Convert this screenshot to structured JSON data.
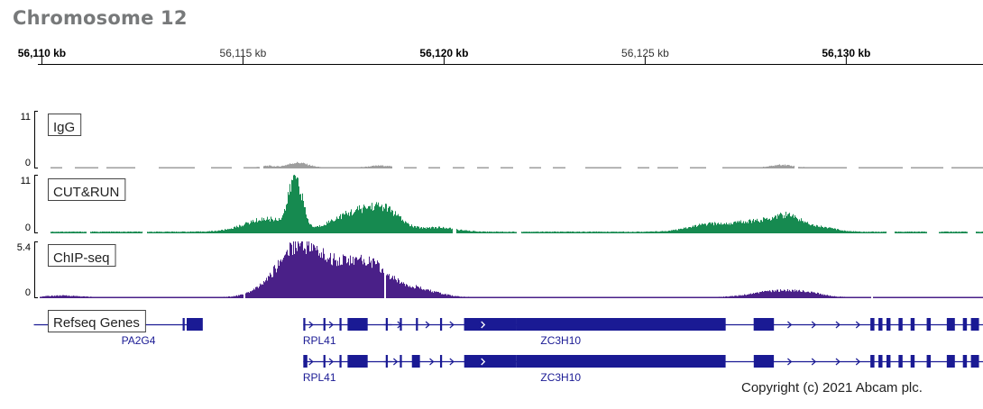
{
  "page": {
    "title": "Chromosome 12",
    "copyright": "Copyright (c) 2021 Abcam plc."
  },
  "colors": {
    "igg": "#9e9e9e",
    "cut_run": "#168a50",
    "chip_seq": "#4a2088",
    "genes": "#1a1a94",
    "axis": "#000000",
    "title": "#77797a"
  },
  "chart_data": {
    "type": "area",
    "title": "Chromosome 12",
    "xlabel": "",
    "x_unit": "kb",
    "x_range": [
      56109.9,
      56133.4
    ],
    "ruler_ticks": [
      {
        "value": 56110,
        "label": "56,110 kb",
        "bold": true
      },
      {
        "value": 56115,
        "label": "56,115 kb",
        "bold": false
      },
      {
        "value": 56120,
        "label": "56,120 kb",
        "bold": true
      },
      {
        "value": 56125,
        "label": "56,125 kb",
        "bold": false
      },
      {
        "value": 56130,
        "label": "56,130 kb",
        "bold": true
      }
    ],
    "tracks": [
      {
        "name": "IgG",
        "color_key": "igg",
        "ylim": [
          0,
          11
        ],
        "ymax_label": "11",
        "ymin_label": "0",
        "gaps": [
          [
            56109.9,
            56110.2
          ],
          [
            56110.5,
            56110.8
          ],
          [
            56111.4,
            56111.6
          ],
          [
            56112.3,
            56112.9
          ],
          [
            56113.8,
            56114.2
          ],
          [
            56114.7,
            56115.0
          ],
          [
            56115.4,
            56115.5
          ],
          [
            56118.7,
            56119.0
          ],
          [
            56119.3,
            56119.6
          ],
          [
            56119.9,
            56120.2
          ],
          [
            56120.5,
            56120.8
          ],
          [
            56121.1,
            56121.4
          ],
          [
            56121.7,
            56122.1
          ],
          [
            56122.4,
            56122.7
          ],
          [
            56123.0,
            56123.5
          ],
          [
            56124.4,
            56124.8
          ],
          [
            56125.1,
            56125.3
          ],
          [
            56125.8,
            56126.1
          ],
          [
            56126.5,
            56126.9
          ],
          [
            56128.7,
            56128.8
          ],
          [
            56130.0,
            56130.3
          ],
          [
            56131.4,
            56131.6
          ],
          [
            56132.4,
            56132.6
          ]
        ],
        "peaks": [
          {
            "center": 56116.35,
            "height": 0.9,
            "width": 0.25
          },
          {
            "center": 56118.4,
            "height": 0.35,
            "width": 0.25
          },
          {
            "center": 56128.4,
            "height": 0.5,
            "width": 0.25
          },
          {
            "center": 56115.6,
            "height": 0.3,
            "width": 0.15
          }
        ],
        "baseline": 0.2
      },
      {
        "name": "CUT&RUN",
        "color_key": "cut_run",
        "ylim": [
          0,
          11
        ],
        "ymax_label": "11",
        "ymin_label": "0",
        "gaps": [
          [
            56109.9,
            56110.2
          ],
          [
            56111.1,
            56111.2
          ],
          [
            56112.5,
            56112.6
          ],
          [
            56120.2,
            56120.3
          ],
          [
            56121.8,
            56121.9
          ],
          [
            56131.0,
            56131.2
          ],
          [
            56132.0,
            56132.3
          ],
          [
            56133.0,
            56133.2
          ]
        ],
        "peaks": [
          {
            "center": 56116.3,
            "height": 9.5,
            "width": 0.16
          },
          {
            "center": 56115.6,
            "height": 2.4,
            "width": 0.55
          },
          {
            "center": 56118.0,
            "height": 3.6,
            "width": 0.45
          },
          {
            "center": 56118.6,
            "height": 2.8,
            "width": 0.35
          },
          {
            "center": 56117.3,
            "height": 1.4,
            "width": 0.35
          },
          {
            "center": 56119.8,
            "height": 0.8,
            "width": 0.45
          },
          {
            "center": 56126.6,
            "height": 1.4,
            "width": 0.5
          },
          {
            "center": 56127.6,
            "height": 1.6,
            "width": 0.4
          },
          {
            "center": 56128.5,
            "height": 3.0,
            "width": 0.4
          },
          {
            "center": 56129.4,
            "height": 0.7,
            "width": 0.35
          }
        ],
        "baseline": 0.3
      },
      {
        "name": "ChIP-seq",
        "color_key": "chip_seq",
        "ylim": [
          0,
          5.4
        ],
        "ymax_label": "5.4",
        "ymin_label": "0",
        "gaps": [
          [
            56115.0,
            56115.05
          ],
          [
            56118.5,
            56118.55
          ],
          [
            56130.6,
            56130.65
          ]
        ],
        "peaks": [
          {
            "center": 56116.3,
            "height": 4.4,
            "width": 0.4
          },
          {
            "center": 56116.95,
            "height": 2.5,
            "width": 0.35
          },
          {
            "center": 56117.5,
            "height": 2.1,
            "width": 0.3
          },
          {
            "center": 56118.1,
            "height": 2.8,
            "width": 0.35
          },
          {
            "center": 56118.8,
            "height": 1.2,
            "width": 0.45
          },
          {
            "center": 56115.6,
            "height": 0.8,
            "width": 0.4
          },
          {
            "center": 56119.6,
            "height": 0.4,
            "width": 0.4
          },
          {
            "center": 56128.2,
            "height": 0.55,
            "width": 0.55
          },
          {
            "center": 56129.0,
            "height": 0.35,
            "width": 0.4
          },
          {
            "center": 56110.5,
            "height": 0.15,
            "width": 0.4
          }
        ],
        "baseline": 0.1
      }
    ],
    "genes_track": {
      "name": "Refseq Genes",
      "rows": [
        {
          "genes": [
            {
              "name": "PA2G4",
              "label_at": 56112.4,
              "start": 56109.8,
              "end": 56113.9,
              "exons": [
                [
                  56113.5,
                  56113.55
                ],
                [
                  56113.6,
                  56114.0
                ]
              ],
              "arrows": []
            },
            {
              "name": "RPL41",
              "label_at": 56116.9,
              "start": 56116.5,
              "end": 56118.7,
              "exons": [
                [
                  56116.5,
                  56116.55
                ],
                [
                  56117.0,
                  56117.05
                ],
                [
                  56117.4,
                  56117.45
                ],
                [
                  56117.6,
                  56118.1
                ]
              ],
              "arrows": [
                56116.7,
                56117.2
              ]
            },
            {
              "name": "ZC3H10",
              "label_at": 56122.9,
              "start": 56118.5,
              "end": 56133.4,
              "exons": [
                [
                  56118.55,
                  56118.6
                ],
                [
                  56118.9,
                  56118.95
                ],
                [
                  56119.3,
                  56119.35
                ],
                [
                  56119.9,
                  56119.95
                ],
                [
                  56120.5,
                  56121.8
                ],
                [
                  56121.8,
                  56127.0
                ],
                [
                  56127.7,
                  56128.2
                ],
                [
                  56130.6,
                  56130.7
                ],
                [
                  56130.8,
                  56130.9
                ],
                [
                  56131.0,
                  56131.1
                ],
                [
                  56131.3,
                  56131.4
                ],
                [
                  56131.6,
                  56131.7
                ],
                [
                  56132.0,
                  56132.1
                ],
                [
                  56132.5,
                  56132.7
                ],
                [
                  56132.9,
                  56133.0
                ],
                [
                  56133.1,
                  56133.3
                ]
              ],
              "thick": [
                [
                  56120.5,
                  56121.8
                ],
                [
                  56121.8,
                  56127.0
                ],
                [
                  56127.7,
                  56128.2
                ]
              ],
              "arrows": [
                56118.9,
                56119.6,
                56120.2,
                56128.6,
                56129.2,
                56129.8,
                56130.3
              ]
            }
          ]
        },
        {
          "genes": [
            {
              "name": "RPL41",
              "label_at": 56116.9,
              "start": 56116.5,
              "end": 56118.7,
              "exons": [
                [
                  56116.5,
                  56116.6
                ],
                [
                  56117.0,
                  56117.05
                ],
                [
                  56117.4,
                  56117.45
                ],
                [
                  56117.6,
                  56118.1
                ]
              ],
              "arrows": [
                56116.7,
                56117.2
              ]
            },
            {
              "name": "ZC3H10",
              "label_at": 56122.9,
              "start": 56118.5,
              "end": 56133.4,
              "exons": [
                [
                  56118.55,
                  56118.6
                ],
                [
                  56118.9,
                  56118.95
                ],
                [
                  56119.2,
                  56119.4
                ],
                [
                  56119.9,
                  56119.95
                ],
                [
                  56130.6,
                  56130.7
                ],
                [
                  56130.8,
                  56130.9
                ],
                [
                  56131.0,
                  56131.1
                ],
                [
                  56131.3,
                  56131.4
                ],
                [
                  56131.6,
                  56131.7
                ],
                [
                  56132.0,
                  56132.1
                ],
                [
                  56132.5,
                  56132.7
                ],
                [
                  56132.9,
                  56133.0
                ],
                [
                  56133.1,
                  56133.3
                ]
              ],
              "thick": [
                [
                  56120.5,
                  56121.8
                ],
                [
                  56121.8,
                  56127.0
                ],
                [
                  56127.7,
                  56128.2
                ]
              ],
              "arrows": [
                56118.8,
                56119.7,
                56120.2,
                56128.6,
                56129.2,
                56129.8,
                56130.3
              ]
            }
          ]
        }
      ]
    }
  }
}
